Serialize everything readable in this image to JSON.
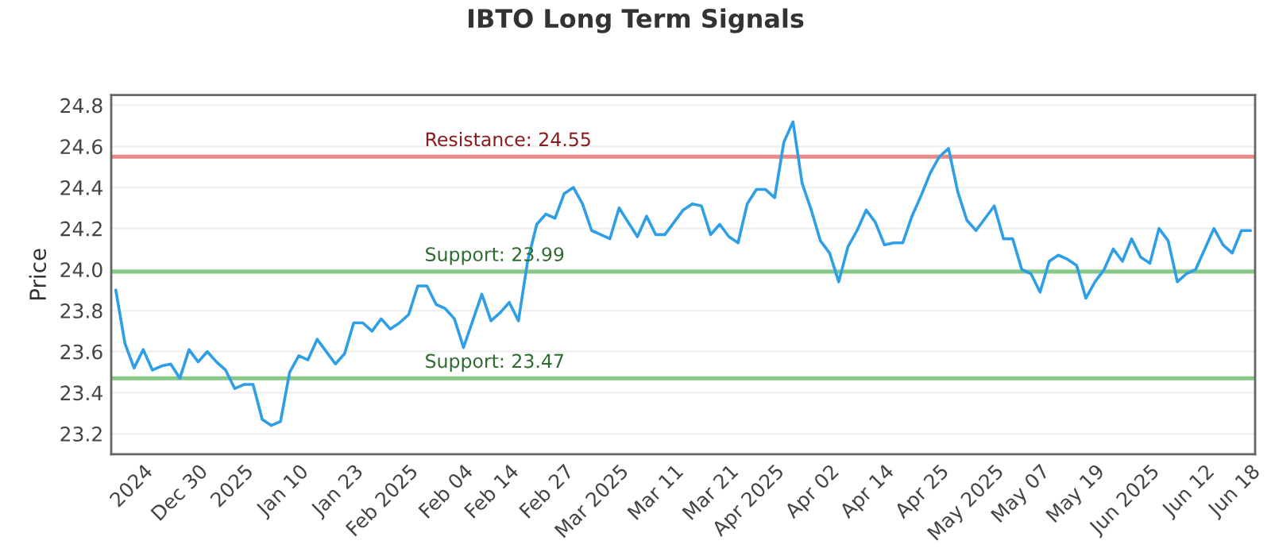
{
  "chart_data": {
    "type": "line",
    "title": "IBTO Long Term Signals",
    "ylabel": "Price",
    "categories": [
      null,
      null,
      null,
      "2024",
      null,
      null,
      null,
      null,
      null,
      "Dec 30",
      null,
      null,
      null,
      null,
      "2025",
      null,
      null,
      null,
      null,
      null,
      "Jan 10",
      null,
      null,
      null,
      null,
      null,
      "Jan 23",
      null,
      null,
      null,
      null,
      null,
      "Feb 2025",
      null,
      null,
      null,
      null,
      null,
      "Feb 04",
      null,
      null,
      null,
      null,
      "Feb 14",
      null,
      null,
      null,
      null,
      null,
      "Feb 27",
      null,
      null,
      null,
      null,
      null,
      "Mar 2025",
      null,
      null,
      null,
      null,
      null,
      "Mar 11",
      null,
      null,
      null,
      null,
      null,
      "Mar 21",
      null,
      null,
      null,
      null,
      "Apr 2025",
      null,
      null,
      null,
      null,
      null,
      "Apr 02",
      null,
      null,
      null,
      null,
      null,
      "Apr 14",
      null,
      null,
      null,
      null,
      null,
      "Apr 25",
      null,
      null,
      null,
      null,
      null,
      "May 2025",
      null,
      null,
      null,
      null,
      "May 07",
      null,
      null,
      null,
      null,
      null,
      "May 19",
      null,
      null,
      null,
      null,
      null,
      "Jun 2025",
      null,
      null,
      null,
      null,
      null,
      "Jun 12",
      null,
      null,
      null,
      null,
      "Jun 18"
    ],
    "series": [
      {
        "color": "#2e9fe6",
        "values": [
          23.9,
          23.64,
          23.52,
          23.61,
          23.51,
          23.53,
          23.54,
          23.47,
          23.61,
          23.55,
          23.6,
          23.55,
          23.51,
          23.42,
          23.44,
          23.44,
          23.27,
          23.24,
          23.26,
          23.5,
          23.58,
          23.56,
          23.66,
          23.6,
          23.54,
          23.59,
          23.74,
          23.74,
          23.7,
          23.76,
          23.71,
          23.74,
          23.78,
          23.92,
          23.92,
          23.83,
          23.81,
          23.76,
          23.62,
          23.75,
          23.88,
          23.75,
          23.79,
          23.84,
          23.75,
          24.04,
          24.22,
          24.27,
          24.25,
          24.37,
          24.4,
          24.32,
          24.19,
          24.17,
          24.15,
          24.3,
          24.23,
          24.16,
          24.26,
          24.17,
          24.17,
          24.23,
          24.29,
          24.32,
          24.31,
          24.17,
          24.22,
          24.16,
          24.13,
          24.32,
          24.39,
          24.39,
          24.35,
          24.62,
          24.72,
          24.42,
          24.29,
          24.14,
          24.08,
          23.94,
          24.11,
          24.19,
          24.29,
          24.23,
          24.12,
          24.13,
          24.13,
          24.26,
          24.36,
          24.47,
          24.55,
          24.59,
          24.38,
          24.24,
          24.19,
          24.25,
          24.31,
          24.15,
          24.15,
          24.0,
          23.98,
          23.89,
          24.04,
          24.07,
          24.05,
          24.02,
          23.86,
          23.94,
          24.0,
          24.1,
          24.04,
          24.15,
          24.06,
          24.03,
          24.2,
          24.14,
          23.94,
          23.98,
          24.0,
          24.1,
          24.2,
          24.12,
          24.08,
          24.19,
          24.19
        ]
      }
    ],
    "ylim": [
      23.1,
      24.85
    ],
    "yticks": [
      {
        "value": 23.2,
        "label": "23.2"
      },
      {
        "value": 23.4,
        "label": "23.4"
      },
      {
        "value": 23.6,
        "label": "23.6"
      },
      {
        "value": 23.8,
        "label": "23.8"
      },
      {
        "value": 24.0,
        "label": "24.0"
      },
      {
        "value": 24.2,
        "label": "24.2"
      },
      {
        "value": 24.4,
        "label": "24.4"
      },
      {
        "value": 24.6,
        "label": "24.6"
      },
      {
        "value": 24.8,
        "label": "24.8"
      }
    ],
    "ref_lines": [
      {
        "axis": "y",
        "value": 24.55,
        "label": "Resistance: 24.55",
        "color": "#e88a8a"
      },
      {
        "axis": "y",
        "value": 23.99,
        "label": "Support: 23.99",
        "color": "#86c986"
      },
      {
        "axis": "y",
        "value": 23.47,
        "label": "Support: 23.47",
        "color": "#86c986"
      }
    ],
    "grid": "y",
    "legend": false,
    "marker": "none",
    "line_style": "solid"
  }
}
